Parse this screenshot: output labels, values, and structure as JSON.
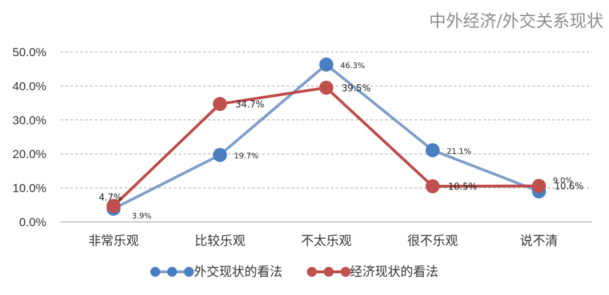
{
  "chart_data": {
    "type": "line",
    "title": "中外经济/外交关系现状",
    "categories": [
      "非常乐观",
      "比较乐观",
      "不太乐观",
      "很不乐观",
      "说不清"
    ],
    "y_ticks": [
      "0.0%",
      "10.0%",
      "20.0%",
      "30.0%",
      "40.0%",
      "50.0%"
    ],
    "ylim": [
      0,
      50
    ],
    "grid": true,
    "legend_position": "bottom",
    "series": [
      {
        "name": "外交现状的看法",
        "color": "#7F9FCB",
        "marker_color": "#4A7EC2",
        "values": [
          3.9,
          19.7,
          46.3,
          21.1,
          9.0
        ],
        "labels": [
          "3.9%",
          "19.7%",
          "46.3%",
          "21.1%",
          "9.0%"
        ]
      },
      {
        "name": "经济现状的看法",
        "color": "#BE4B48",
        "marker_color": "#C0504D",
        "values": [
          4.7,
          34.7,
          39.5,
          10.5,
          10.6
        ],
        "labels": [
          "4.7%",
          "34.7%",
          "39.5%",
          "10.5%",
          "10.6%"
        ]
      }
    ]
  }
}
